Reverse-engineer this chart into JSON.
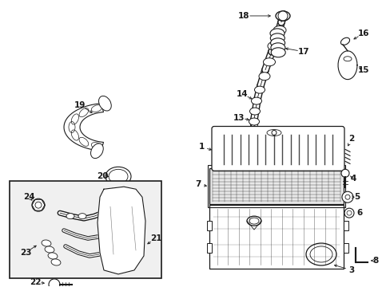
{
  "bg_color": "#ffffff",
  "line_color": "#1a1a1a",
  "lw": 0.7,
  "fig_w": 4.89,
  "fig_h": 3.6,
  "dpi": 100
}
